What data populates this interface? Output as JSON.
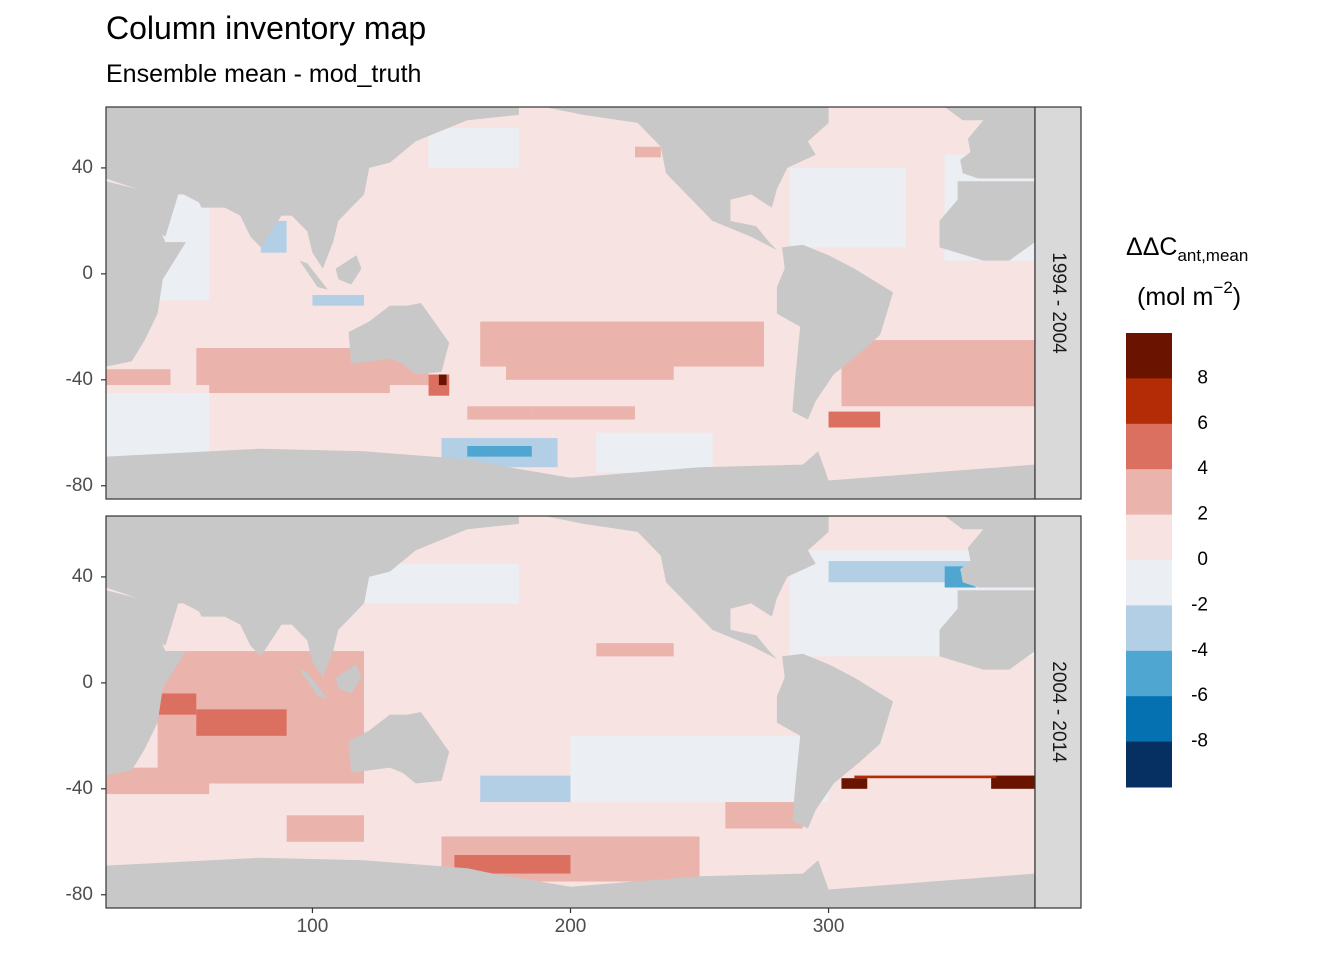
{
  "title": "Column inventory map",
  "subtitle": "Ensemble mean - mod_truth",
  "chart_data": {
    "type": "heatmap",
    "xlim": [
      20,
      380
    ],
    "ylim": [
      -85,
      63
    ],
    "x_ticks": [
      100,
      200,
      300
    ],
    "y_ticks": [
      40,
      0,
      -40,
      -80
    ],
    "tick_labels": {
      "x": [
        "100",
        "200",
        "300"
      ],
      "y": [
        "40",
        "0",
        "-40",
        "-80"
      ]
    },
    "panels": [
      {
        "strip": "1994 - 2004",
        "regions": [
          {
            "lon": [
              20,
              380
            ],
            "lat": [
              -85,
              63
            ],
            "v": 1
          },
          {
            "lon": [
              20,
              60
            ],
            "lat": [
              -10,
              30
            ],
            "v": -1
          },
          {
            "lon": [
              20,
              60
            ],
            "lat": [
              -75,
              -45
            ],
            "v": -1
          },
          {
            "lon": [
              55,
              145
            ],
            "lat": [
              -42,
              -28
            ],
            "v": 3
          },
          {
            "lon": [
              60,
              130
            ],
            "lat": [
              -45,
              -38
            ],
            "v": 3
          },
          {
            "lon": [
              20,
              45
            ],
            "lat": [
              -42,
              -36
            ],
            "v": 3
          },
          {
            "lon": [
              165,
              275
            ],
            "lat": [
              -35,
              -18
            ],
            "v": 3
          },
          {
            "lon": [
              175,
              240
            ],
            "lat": [
              -40,
              -33
            ],
            "v": 3
          },
          {
            "lon": [
              305,
              380
            ],
            "lat": [
              -50,
              -25
            ],
            "v": 3
          },
          {
            "lon": [
              185,
              225
            ],
            "lat": [
              -55,
              -50
            ],
            "v": 3
          },
          {
            "lon": [
              160,
              185
            ],
            "lat": [
              -55,
              -50
            ],
            "v": 3
          },
          {
            "lon": [
              300,
              320
            ],
            "lat": [
              -58,
              -52
            ],
            "v": 5
          },
          {
            "lon": [
              145,
              153
            ],
            "lat": [
              -46,
              -38
            ],
            "v": 5
          },
          {
            "lon": [
              149,
              152
            ],
            "lat": [
              -42,
              -38
            ],
            "v": 9
          },
          {
            "lon": [
              345,
              380
            ],
            "lat": [
              5,
              45
            ],
            "v": -1
          },
          {
            "lon": [
              285,
              330
            ],
            "lat": [
              10,
              40
            ],
            "v": -1
          },
          {
            "lon": [
              145,
              180
            ],
            "lat": [
              40,
              55
            ],
            "v": -1
          },
          {
            "lon": [
              210,
              255
            ],
            "lat": [
              -75,
              -60
            ],
            "v": -1
          },
          {
            "lon": [
              150,
              195
            ],
            "lat": [
              -73,
              -62
            ],
            "v": -3
          },
          {
            "lon": [
              160,
              185
            ],
            "lat": [
              -69,
              -65
            ],
            "v": -5
          },
          {
            "lon": [
              80,
              90
            ],
            "lat": [
              8,
              20
            ],
            "v": -3
          },
          {
            "lon": [
              100,
              120
            ],
            "lat": [
              -12,
              -8
            ],
            "v": -3
          },
          {
            "lon": [
              225,
              235
            ],
            "lat": [
              44,
              48
            ],
            "v": 3
          }
        ],
        "land_cells": "continents rendered from shapes"
      },
      {
        "strip": "2004 - 2014",
        "regions": [
          {
            "lon": [
              20,
              380
            ],
            "lat": [
              -85,
              63
            ],
            "v": 1
          },
          {
            "lon": [
              40,
              120
            ],
            "lat": [
              -38,
              12
            ],
            "v": 3
          },
          {
            "lon": [
              20,
              60
            ],
            "lat": [
              -42,
              -32
            ],
            "v": 3
          },
          {
            "lon": [
              40,
              55
            ],
            "lat": [
              -12,
              -4
            ],
            "v": 5
          },
          {
            "lon": [
              55,
              90
            ],
            "lat": [
              -20,
              -10
            ],
            "v": 5
          },
          {
            "lon": [
              150,
              250
            ],
            "lat": [
              -75,
              -58
            ],
            "v": 3
          },
          {
            "lon": [
              155,
              200
            ],
            "lat": [
              -72,
              -65
            ],
            "v": 5
          },
          {
            "lon": [
              285,
              380
            ],
            "lat": [
              10,
              50
            ],
            "v": -1
          },
          {
            "lon": [
              300,
              360
            ],
            "lat": [
              38,
              46
            ],
            "v": -3
          },
          {
            "lon": [
              345,
              357
            ],
            "lat": [
              36,
              44
            ],
            "v": -5
          },
          {
            "lon": [
              305,
              315
            ],
            "lat": [
              -40,
              -36
            ],
            "v": 9
          },
          {
            "lon": [
              363,
              380
            ],
            "lat": [
              -40,
              -35
            ],
            "v": 9
          },
          {
            "lon": [
              310,
              365
            ],
            "lat": [
              -36,
              -35
            ],
            "v": 7
          },
          {
            "lon": [
              115,
              180
            ],
            "lat": [
              30,
              45
            ],
            "v": -1
          },
          {
            "lon": [
              165,
              200
            ],
            "lat": [
              -45,
              -35
            ],
            "v": -3
          },
          {
            "lon": [
              200,
              300
            ],
            "lat": [
              -45,
              -20
            ],
            "v": -1
          },
          {
            "lon": [
              90,
              120
            ],
            "lat": [
              -60,
              -50
            ],
            "v": 3
          },
          {
            "lon": [
              260,
              290
            ],
            "lat": [
              -55,
              -45
            ],
            "v": 3
          },
          {
            "lon": [
              210,
              240
            ],
            "lat": [
              10,
              15
            ],
            "v": 3
          }
        ],
        "land_cells": "continents rendered from shapes"
      }
    ],
    "legend": {
      "title_main": "ΔΔC",
      "title_sub": "ant,mean",
      "units": "(mol m",
      "units_sup": "−2",
      "units_close": ")",
      "labels": [
        "8",
        "6",
        "4",
        "2",
        "0",
        "-2",
        "-4",
        "-6",
        "-8"
      ],
      "colors": [
        "#67001f",
        "#b2182b",
        "#d6604d",
        "#f4a582",
        "#fddbc7",
        "#f7f7f7",
        "#d1e5f0",
        "#92c5de",
        "#4393c3",
        "#2166ac",
        "#053061"
      ],
      "breaks": [
        -10,
        -8,
        -6,
        -4,
        -2,
        0,
        2,
        4,
        6,
        8,
        10
      ],
      "bin_colors": [
        "#053061",
        "#0571b0",
        "#4fa6d0",
        "#b3cfe6",
        "#ebeff4",
        "#f7e4e2",
        "#eab3ac",
        "#db7060",
        "#b42c06",
        "#6a1400"
      ]
    },
    "land_color": "#c8c8c8",
    "strip_color": "#d9d9d9"
  }
}
